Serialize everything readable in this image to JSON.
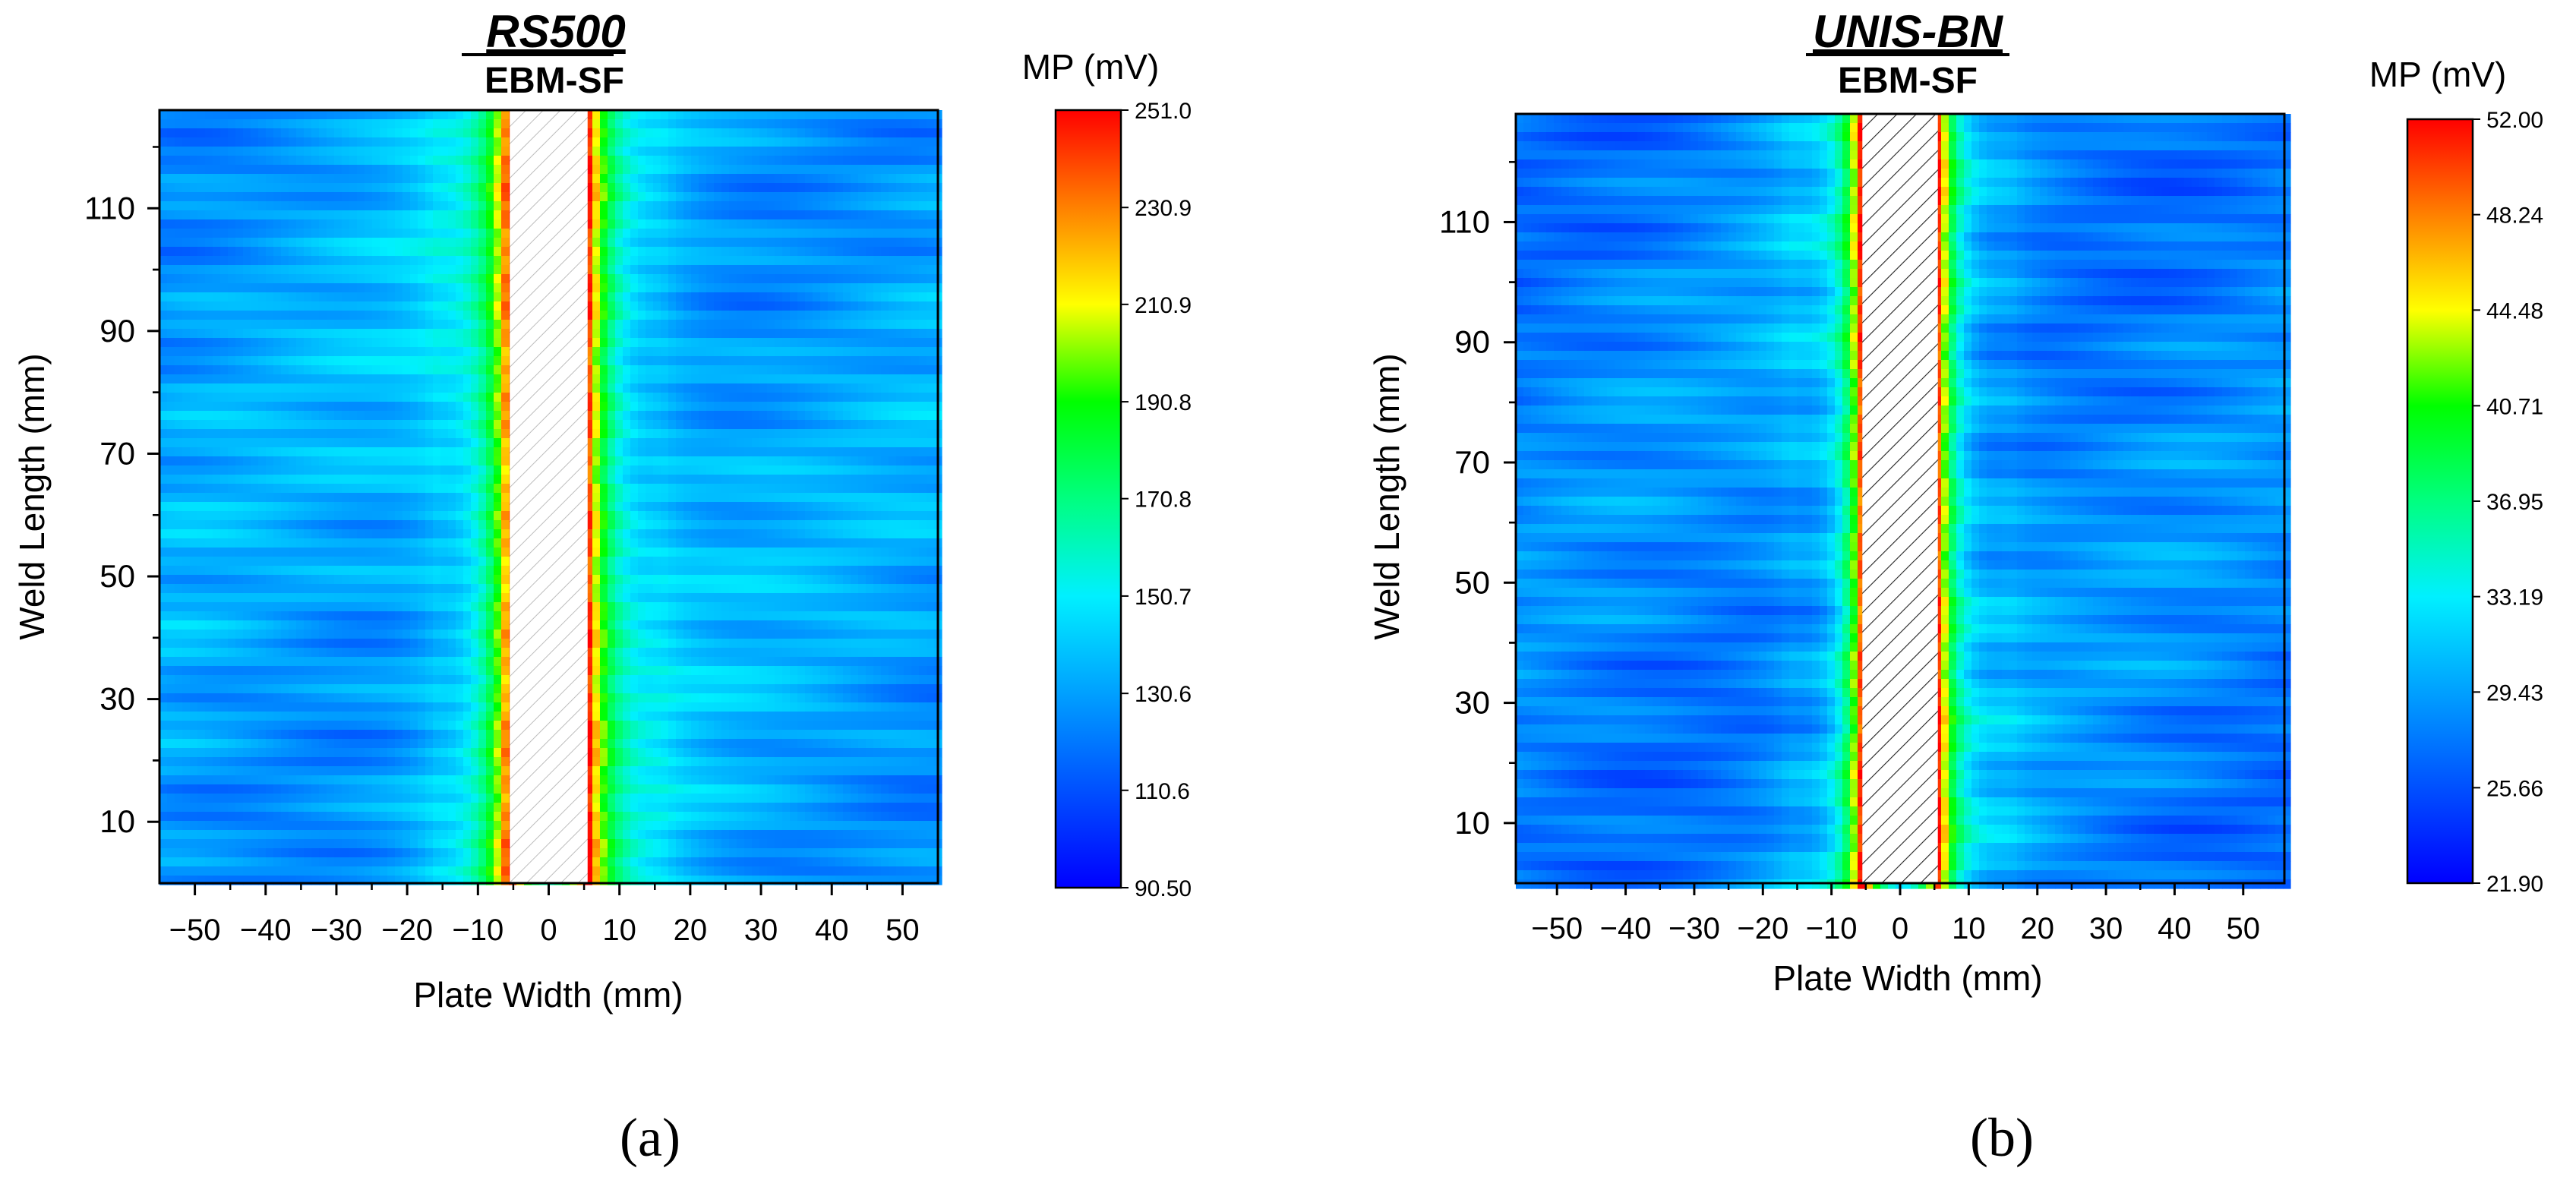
{
  "chart_data": [
    {
      "type": "heatmap",
      "panel_label": "(a)",
      "title": "RS500",
      "subtitle": "EBM-SF",
      "xlabel": "Plate Width (mm)",
      "ylabel": "Weld Length (mm)",
      "xlim": [
        -55,
        55
      ],
      "ylim": [
        0,
        126
      ],
      "x_ticks": [
        -50,
        -40,
        -30,
        -20,
        -10,
        0,
        10,
        20,
        30,
        40,
        50
      ],
      "x_tick_labels": [
        "−50",
        "−40",
        "−30",
        "−20",
        "−10",
        "0",
        "10",
        "20",
        "30",
        "40",
        "50"
      ],
      "y_ticks": [
        10,
        30,
        50,
        70,
        90,
        110
      ],
      "y_tick_labels": [
        "10",
        "30",
        "50",
        "70",
        "90",
        "110"
      ],
      "weld_zone_x": [
        -5.5,
        5.5
      ],
      "weld_hatch_color": "#bdbdbd",
      "colorbar": {
        "label": "MP (mV)",
        "min": 90.5,
        "max": 251.0,
        "tick_values": [
          90.5,
          110.6,
          130.6,
          150.7,
          170.8,
          190.8,
          210.9,
          230.9,
          251.0
        ],
        "tick_labels": [
          "90.50",
          "110.6",
          "130.6",
          "150.7",
          "170.8",
          "190.8",
          "210.9",
          "230.9",
          "251.0"
        ]
      },
      "field_levels": {
        "background": 0.25,
        "edge_peak": 0.97,
        "decay_width_mm": 3.2
      }
    },
    {
      "type": "heatmap",
      "panel_label": "(b)",
      "title": "UNIS-BN",
      "subtitle": "EBM-SF",
      "xlabel": "Plate Width (mm)",
      "ylabel": "Weld Length (mm)",
      "xlim": [
        -56,
        56
      ],
      "ylim": [
        0,
        128
      ],
      "x_ticks": [
        -50,
        -40,
        -30,
        -20,
        -10,
        0,
        10,
        20,
        30,
        40,
        50
      ],
      "x_tick_labels": [
        "−50",
        "−40",
        "−30",
        "−20",
        "−10",
        "0",
        "10",
        "20",
        "30",
        "40",
        "50"
      ],
      "y_ticks": [
        10,
        30,
        50,
        70,
        90,
        110
      ],
      "y_tick_labels": [
        "10",
        "30",
        "50",
        "70",
        "90",
        "110"
      ],
      "weld_zone_x": [
        -5.5,
        5.5
      ],
      "weld_hatch_color": "#222222",
      "colorbar": {
        "label": "MP (mV)",
        "min": 21.9,
        "max": 52.0,
        "tick_values": [
          21.9,
          25.66,
          29.43,
          33.19,
          36.95,
          40.71,
          44.48,
          48.24,
          52.0
        ],
        "tick_labels": [
          "21.90",
          "25.66",
          "29.43",
          "33.19",
          "36.95",
          "40.71",
          "44.48",
          "48.24",
          "52.00"
        ]
      },
      "field_levels": {
        "background": 0.2,
        "edge_peak": 0.96,
        "decay_width_mm": 2.6
      }
    }
  ]
}
